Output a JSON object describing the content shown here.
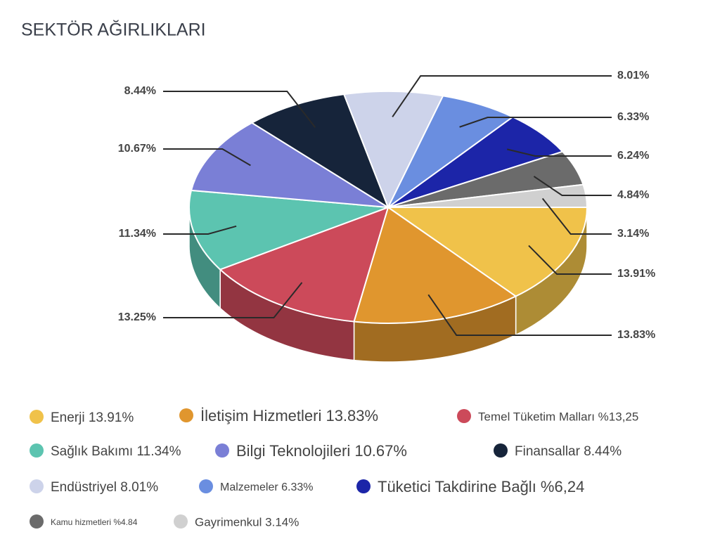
{
  "chart_data": {
    "type": "pie3d",
    "title": "SEKTÖR AĞIRLIKLARI",
    "categories": [
      "Enerji 13.91%",
      "İletişim Hizmetleri 13.83%",
      "Temel Tüketim Malları %13,25",
      "Sağlık Bakımı 11.34%",
      "Bilgi Teknolojileri 10.67%",
      "Finansallar 8.44%",
      "Endüstriyel 8.01%",
      "Malzemeler 6.33%",
      "Tüketici Takdirine Bağlı %6,24",
      "Kamu hizmetleri %4.84",
      "Gayrimenkul 3.14%"
    ],
    "values": [
      13.91,
      13.83,
      13.25,
      11.34,
      10.67,
      8.44,
      8.01,
      6.33,
      6.24,
      4.84,
      3.14
    ],
    "value_labels": [
      "13.91%",
      "13.83%",
      "13.25%",
      "11.34%",
      "10.67%",
      "8.44%",
      "8.01%",
      "6.33%",
      "6.24%",
      "4.84%",
      "3.14%"
    ],
    "colors": [
      "#f0c24a",
      "#e0962e",
      "#cc4a5a",
      "#5cc4b0",
      "#7a7fd6",
      "#16243a",
      "#cdd3ea",
      "#6a8ee0",
      "#1c25a8",
      "#6b6b6b",
      "#d0d0d0"
    ]
  }
}
